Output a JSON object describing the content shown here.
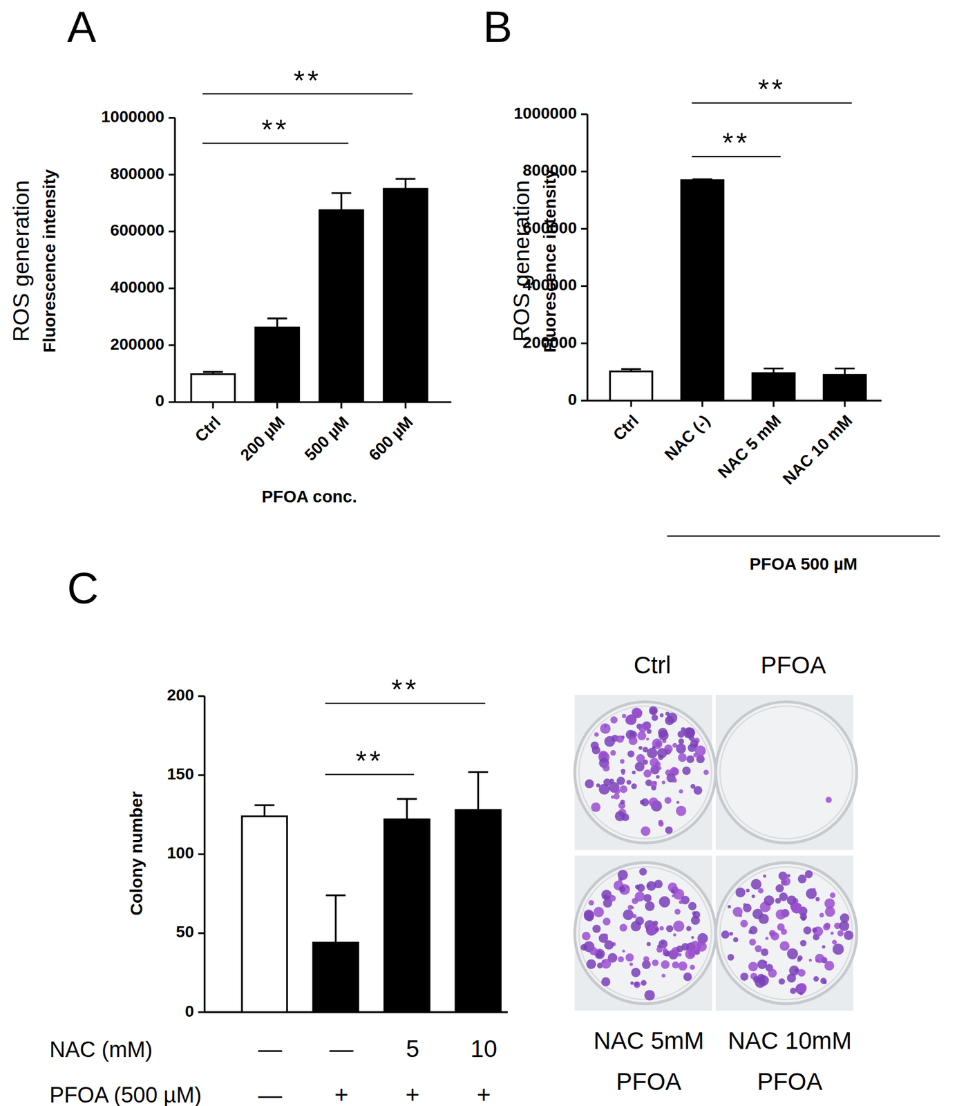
{
  "chart_data": [
    {
      "type": "bar",
      "title": "A",
      "ylabel": [
        "ROS generation",
        "Fluorescence intensity"
      ],
      "xlabel": "PFOA conc.",
      "categories": [
        "Ctrl",
        "200 µM",
        "500 µM",
        "600 µM"
      ],
      "values": [
        98000,
        262000,
        675000,
        750000
      ],
      "errors": [
        8000,
        32000,
        60000,
        35000
      ],
      "colors": [
        "#ffffff",
        "#000000",
        "#000000",
        "#000000"
      ],
      "ylim": [
        0,
        1000000
      ],
      "yticks": [
        0,
        200000,
        400000,
        600000,
        800000,
        1000000
      ],
      "grid": false,
      "annotations": [
        {
          "text": "**",
          "between": [
            0,
            2
          ]
        },
        {
          "text": "**",
          "between": [
            0,
            3
          ]
        }
      ]
    },
    {
      "type": "bar",
      "title": "B",
      "ylabel": [
        "ROS generation",
        "Fluorescence intensity"
      ],
      "categories": [
        "Ctrl",
        "NAC (-)",
        "NAC 5 mM",
        "NAC 10 mM"
      ],
      "values": [
        102000,
        770000,
        96000,
        90000
      ],
      "errors": [
        8000,
        3000,
        16000,
        22000
      ],
      "colors": [
        "#ffffff",
        "#000000",
        "#000000",
        "#000000"
      ],
      "ylim": [
        0,
        1000000
      ],
      "yticks": [
        0,
        200000,
        400000,
        600000,
        800000,
        1000000
      ],
      "grid": false,
      "group_label": {
        "text": "PFOA 500 µM",
        "between": [
          1,
          3
        ]
      },
      "annotations": [
        {
          "text": "**",
          "between": [
            1,
            2
          ]
        },
        {
          "text": "**",
          "between": [
            1,
            3
          ]
        }
      ]
    },
    {
      "type": "bar",
      "title": "C",
      "ylabel": "Colony number",
      "categories": [
        null,
        null,
        null,
        null
      ],
      "values": [
        124,
        44,
        122,
        128
      ],
      "errors": [
        7,
        30,
        13,
        24
      ],
      "colors": [
        "#ffffff",
        "#000000",
        "#000000",
        "#000000"
      ],
      "ylim": [
        0,
        200
      ],
      "yticks": [
        0,
        50,
        100,
        150,
        200
      ],
      "grid": false,
      "tick_labels": "y",
      "x_table": [
        {
          "label": "NAC (mM)",
          "values": [
            "—",
            "—",
            "5",
            "10"
          ]
        },
        {
          "label": "PFOA (500 µM)",
          "values": [
            "—",
            "+",
            "+",
            "+"
          ]
        }
      ],
      "annotations": [
        {
          "text": "**",
          "between": [
            1,
            2
          ]
        },
        {
          "text": "**",
          "between": [
            1,
            3
          ]
        }
      ]
    }
  ],
  "photos": {
    "top_labels": [
      "Ctrl",
      "PFOA"
    ],
    "bottom_labels": [
      [
        "NAC 5mM",
        "PFOA"
      ],
      [
        "NAC 10mM",
        "PFOA"
      ]
    ]
  }
}
